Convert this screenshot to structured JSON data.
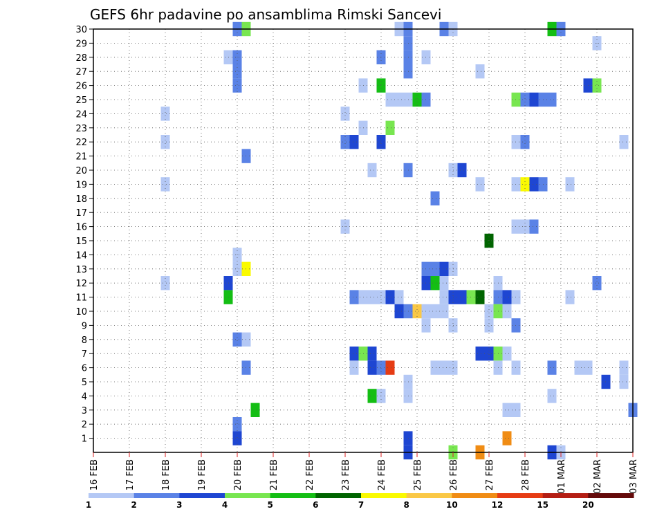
{
  "chart_data": {
    "type": "heatmap",
    "title": "GEFS 6hr padavine po ansamblima Rimski Sancevi",
    "xlabel": "",
    "ylabel": "",
    "x_ticks": [
      "16 FEB",
      "17 FEB",
      "18 FEB",
      "19 FEB",
      "20 FEB",
      "21 FEB",
      "22 FEB",
      "23 FEB",
      "24 FEB",
      "25 FEB",
      "26 FEB",
      "27 FEB",
      "28 FEB",
      "01 MAR",
      "02 MAR",
      "03 MAR"
    ],
    "xlim": [
      0,
      15
    ],
    "y_ticks": [
      "1",
      "2",
      "3",
      "4",
      "5",
      "6",
      "7",
      "8",
      "9",
      "10",
      "11",
      "12",
      "13",
      "14",
      "15",
      "16",
      "17",
      "18",
      "19",
      "20",
      "21",
      "22",
      "23",
      "24",
      "25",
      "26",
      "27",
      "28",
      "29",
      "30"
    ],
    "ylim": [
      0,
      30
    ],
    "grid": true,
    "legend": {
      "placement": "bottom",
      "labels": [
        "1",
        "2",
        "3",
        "4",
        "5",
        "6",
        "7",
        "8",
        "10",
        "12",
        "15",
        "20"
      ],
      "colors": [
        "#b4c8f5",
        "#5a82e6",
        "#1e46d2",
        "#78e650",
        "#14be14",
        "#006400",
        "#fafa00",
        "#fac846",
        "#f08c14",
        "#e63c14",
        "#b41e14",
        "#640a0a"
      ]
    },
    "value_units": "color class index (0-11) into legend colors",
    "cells": [
      {
        "x": 4.0,
        "y": 30,
        "c": 1
      },
      {
        "x": 4.25,
        "y": 30,
        "c": 3
      },
      {
        "x": 8.5,
        "y": 30,
        "c": 0
      },
      {
        "x": 8.75,
        "y": 30,
        "c": 1
      },
      {
        "x": 9.75,
        "y": 30,
        "c": 1
      },
      {
        "x": 10.0,
        "y": 30,
        "c": 0
      },
      {
        "x": 12.75,
        "y": 30,
        "c": 4
      },
      {
        "x": 13.0,
        "y": 30,
        "c": 1
      },
      {
        "x": 14.0,
        "y": 29,
        "c": 0
      },
      {
        "x": 8.75,
        "y": 29,
        "c": 1
      },
      {
        "x": 3.75,
        "y": 28,
        "c": 0
      },
      {
        "x": 4.0,
        "y": 28,
        "c": 1
      },
      {
        "x": 8.0,
        "y": 28,
        "c": 1
      },
      {
        "x": 8.75,
        "y": 28,
        "c": 1
      },
      {
        "x": 9.25,
        "y": 28,
        "c": 0
      },
      {
        "x": 4.0,
        "y": 27,
        "c": 1
      },
      {
        "x": 8.75,
        "y": 27,
        "c": 1
      },
      {
        "x": 10.75,
        "y": 27,
        "c": 0
      },
      {
        "x": 4.0,
        "y": 26,
        "c": 1
      },
      {
        "x": 7.5,
        "y": 26,
        "c": 0
      },
      {
        "x": 8.0,
        "y": 26,
        "c": 4
      },
      {
        "x": 13.75,
        "y": 26,
        "c": 2
      },
      {
        "x": 14.0,
        "y": 26,
        "c": 3
      },
      {
        "x": 8.25,
        "y": 25,
        "c": 0
      },
      {
        "x": 8.5,
        "y": 25,
        "c": 0
      },
      {
        "x": 8.75,
        "y": 25,
        "c": 0
      },
      {
        "x": 9.0,
        "y": 25,
        "c": 4
      },
      {
        "x": 9.25,
        "y": 25,
        "c": 1
      },
      {
        "x": 11.75,
        "y": 25,
        "c": 3
      },
      {
        "x": 12.0,
        "y": 25,
        "c": 1
      },
      {
        "x": 12.25,
        "y": 25,
        "c": 2
      },
      {
        "x": 12.5,
        "y": 25,
        "c": 1
      },
      {
        "x": 12.75,
        "y": 25,
        "c": 1
      },
      {
        "x": 2.0,
        "y": 24,
        "c": 0
      },
      {
        "x": 7.0,
        "y": 24,
        "c": 0
      },
      {
        "x": 7.5,
        "y": 23,
        "c": 0
      },
      {
        "x": 8.25,
        "y": 23,
        "c": 3
      },
      {
        "x": 2.0,
        "y": 22,
        "c": 0
      },
      {
        "x": 7.0,
        "y": 22,
        "c": 1
      },
      {
        "x": 7.25,
        "y": 22,
        "c": 2
      },
      {
        "x": 8.0,
        "y": 22,
        "c": 2
      },
      {
        "x": 11.75,
        "y": 22,
        "c": 0
      },
      {
        "x": 12.0,
        "y": 22,
        "c": 1
      },
      {
        "x": 14.75,
        "y": 22,
        "c": 0
      },
      {
        "x": 4.25,
        "y": 21,
        "c": 1
      },
      {
        "x": 7.75,
        "y": 20,
        "c": 0
      },
      {
        "x": 8.75,
        "y": 20,
        "c": 1
      },
      {
        "x": 10.0,
        "y": 20,
        "c": 0
      },
      {
        "x": 10.25,
        "y": 20,
        "c": 2
      },
      {
        "x": 2.0,
        "y": 19,
        "c": 0
      },
      {
        "x": 10.75,
        "y": 19,
        "c": 0
      },
      {
        "x": 11.75,
        "y": 19,
        "c": 0
      },
      {
        "x": 12.0,
        "y": 19,
        "c": 6
      },
      {
        "x": 12.25,
        "y": 19,
        "c": 2
      },
      {
        "x": 12.5,
        "y": 19,
        "c": 1
      },
      {
        "x": 13.25,
        "y": 19,
        "c": 0
      },
      {
        "x": 9.5,
        "y": 18,
        "c": 1
      },
      {
        "x": 7.0,
        "y": 16,
        "c": 0
      },
      {
        "x": 11.75,
        "y": 16,
        "c": 0
      },
      {
        "x": 12.0,
        "y": 16,
        "c": 0
      },
      {
        "x": 12.25,
        "y": 16,
        "c": 1
      },
      {
        "x": 11.0,
        "y": 15,
        "c": 5
      },
      {
        "x": 4.0,
        "y": 14,
        "c": 0
      },
      {
        "x": 4.0,
        "y": 13,
        "c": 0
      },
      {
        "x": 4.25,
        "y": 13,
        "c": 6
      },
      {
        "x": 9.25,
        "y": 13,
        "c": 1
      },
      {
        "x": 9.5,
        "y": 13,
        "c": 1
      },
      {
        "x": 9.75,
        "y": 13,
        "c": 2
      },
      {
        "x": 10.0,
        "y": 13,
        "c": 0
      },
      {
        "x": 2.0,
        "y": 12,
        "c": 0
      },
      {
        "x": 3.75,
        "y": 12,
        "c": 2
      },
      {
        "x": 9.25,
        "y": 12,
        "c": 2
      },
      {
        "x": 9.5,
        "y": 12,
        "c": 4
      },
      {
        "x": 9.75,
        "y": 12,
        "c": 0
      },
      {
        "x": 11.25,
        "y": 12,
        "c": 0
      },
      {
        "x": 14.0,
        "y": 12,
        "c": 1
      },
      {
        "x": 3.75,
        "y": 11,
        "c": 4
      },
      {
        "x": 7.25,
        "y": 11,
        "c": 1
      },
      {
        "x": 7.5,
        "y": 11,
        "c": 0
      },
      {
        "x": 7.75,
        "y": 11,
        "c": 0
      },
      {
        "x": 8.0,
        "y": 11,
        "c": 0
      },
      {
        "x": 8.25,
        "y": 11,
        "c": 2
      },
      {
        "x": 8.5,
        "y": 11,
        "c": 0
      },
      {
        "x": 9.75,
        "y": 11,
        "c": 0
      },
      {
        "x": 10.0,
        "y": 11,
        "c": 2
      },
      {
        "x": 10.25,
        "y": 11,
        "c": 2
      },
      {
        "x": 10.5,
        "y": 11,
        "c": 3
      },
      {
        "x": 10.75,
        "y": 11,
        "c": 5
      },
      {
        "x": 11.25,
        "y": 11,
        "c": 1
      },
      {
        "x": 11.5,
        "y": 11,
        "c": 2
      },
      {
        "x": 11.75,
        "y": 11,
        "c": 0
      },
      {
        "x": 13.25,
        "y": 11,
        "c": 0
      },
      {
        "x": 8.5,
        "y": 10,
        "c": 2
      },
      {
        "x": 8.75,
        "y": 10,
        "c": 1
      },
      {
        "x": 9.0,
        "y": 10,
        "c": 7
      },
      {
        "x": 9.25,
        "y": 10,
        "c": 0
      },
      {
        "x": 9.5,
        "y": 10,
        "c": 0
      },
      {
        "x": 9.75,
        "y": 10,
        "c": 0
      },
      {
        "x": 11.0,
        "y": 10,
        "c": 0
      },
      {
        "x": 11.25,
        "y": 10,
        "c": 3
      },
      {
        "x": 11.5,
        "y": 10,
        "c": 0
      },
      {
        "x": 9.25,
        "y": 9,
        "c": 0
      },
      {
        "x": 10.0,
        "y": 9,
        "c": 0
      },
      {
        "x": 11.0,
        "y": 9,
        "c": 0
      },
      {
        "x": 11.75,
        "y": 9,
        "c": 1
      },
      {
        "x": 4.0,
        "y": 8,
        "c": 1
      },
      {
        "x": 4.25,
        "y": 8,
        "c": 0
      },
      {
        "x": 7.25,
        "y": 7,
        "c": 2
      },
      {
        "x": 7.5,
        "y": 7,
        "c": 3
      },
      {
        "x": 7.75,
        "y": 7,
        "c": 2
      },
      {
        "x": 10.75,
        "y": 7,
        "c": 2
      },
      {
        "x": 11.0,
        "y": 7,
        "c": 2
      },
      {
        "x": 11.25,
        "y": 7,
        "c": 3
      },
      {
        "x": 11.5,
        "y": 7,
        "c": 0
      },
      {
        "x": 4.25,
        "y": 6,
        "c": 1
      },
      {
        "x": 7.25,
        "y": 6,
        "c": 0
      },
      {
        "x": 7.75,
        "y": 6,
        "c": 2
      },
      {
        "x": 8.0,
        "y": 6,
        "c": 1
      },
      {
        "x": 8.25,
        "y": 6,
        "c": 9
      },
      {
        "x": 9.5,
        "y": 6,
        "c": 0
      },
      {
        "x": 9.75,
        "y": 6,
        "c": 0
      },
      {
        "x": 10.0,
        "y": 6,
        "c": 0
      },
      {
        "x": 11.25,
        "y": 6,
        "c": 0
      },
      {
        "x": 11.75,
        "y": 6,
        "c": 0
      },
      {
        "x": 12.75,
        "y": 6,
        "c": 1
      },
      {
        "x": 13.5,
        "y": 6,
        "c": 0
      },
      {
        "x": 13.75,
        "y": 6,
        "c": 0
      },
      {
        "x": 14.75,
        "y": 6,
        "c": 0
      },
      {
        "x": 8.75,
        "y": 5,
        "c": 0
      },
      {
        "x": 14.25,
        "y": 5,
        "c": 2
      },
      {
        "x": 14.75,
        "y": 5,
        "c": 0
      },
      {
        "x": 7.75,
        "y": 4,
        "c": 4
      },
      {
        "x": 8.0,
        "y": 4,
        "c": 0
      },
      {
        "x": 8.75,
        "y": 4,
        "c": 0
      },
      {
        "x": 12.75,
        "y": 4,
        "c": 0
      },
      {
        "x": 4.5,
        "y": 3,
        "c": 4
      },
      {
        "x": 11.5,
        "y": 3,
        "c": 0
      },
      {
        "x": 11.75,
        "y": 3,
        "c": 0
      },
      {
        "x": 15.0,
        "y": 3,
        "c": 1
      },
      {
        "x": 4.0,
        "y": 2,
        "c": 1
      },
      {
        "x": 4.0,
        "y": 1,
        "c": 2
      },
      {
        "x": 8.75,
        "y": 1,
        "c": 2
      },
      {
        "x": 11.5,
        "y": 1,
        "c": 8
      },
      {
        "x": 8.75,
        "y": 0,
        "c": 2
      },
      {
        "x": 10.0,
        "y": 0,
        "c": 3
      },
      {
        "x": 10.75,
        "y": 0,
        "c": 8
      },
      {
        "x": 12.75,
        "y": 0,
        "c": 2
      },
      {
        "x": 13.0,
        "y": 0,
        "c": 0
      }
    ]
  }
}
